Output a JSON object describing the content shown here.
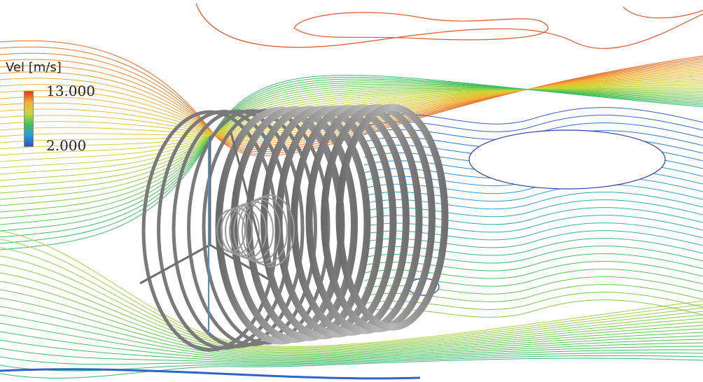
{
  "legend": {
    "title": "Vel [m/s]",
    "max_label": "13.000",
    "min_label": "2.000",
    "colormap": [
      "#3050b8",
      "#2a9be0",
      "#3fbf5a",
      "#c8d83a",
      "#f2b233",
      "#e23a22"
    ]
  },
  "scene": {
    "description_icon": "wind-turbine-wake-visualization",
    "tube_color": "#8e8e8e"
  }
}
